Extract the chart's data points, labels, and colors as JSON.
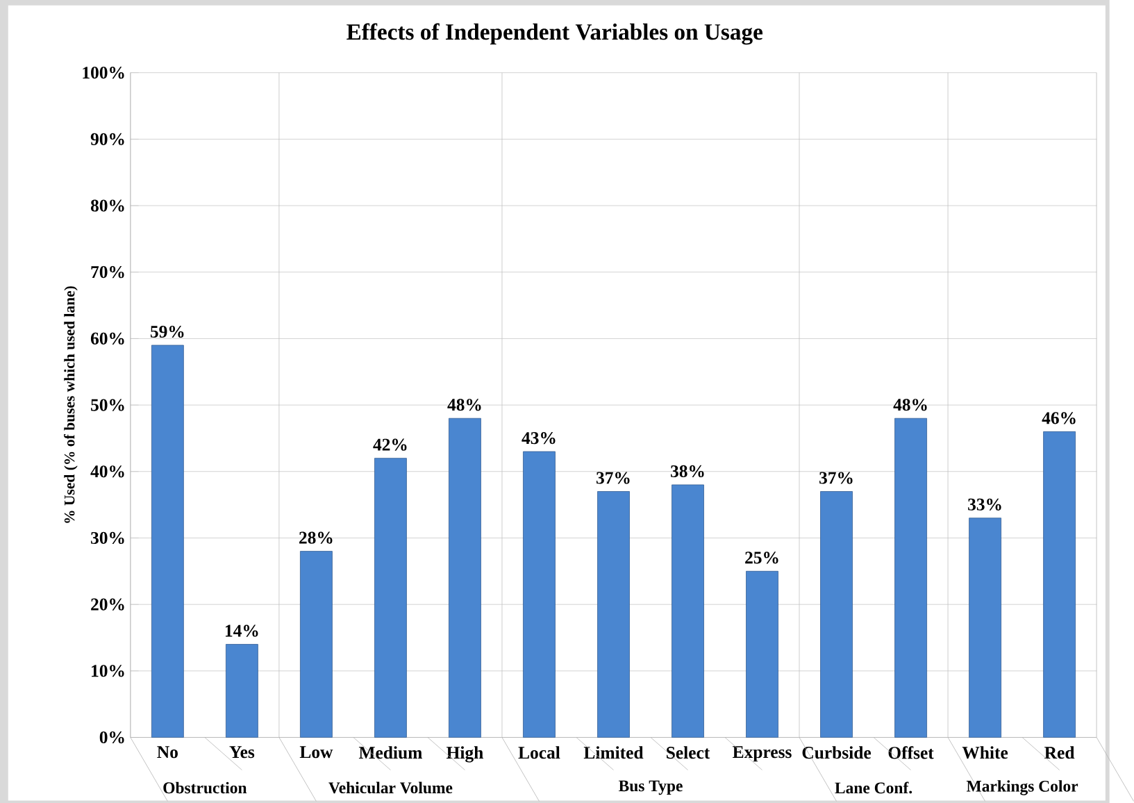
{
  "chart_data": {
    "type": "bar",
    "title": "Effects of Independent Variables on Usage",
    "ylabel": "% Used (% of buses which used lane)",
    "categories": [
      "No",
      "Yes",
      "Low",
      "Medium",
      "High",
      "Local",
      "Limited",
      "Select",
      "Express",
      "Curbside",
      "Offset",
      "White",
      "Red"
    ],
    "values": [
      59,
      14,
      28,
      42,
      48,
      43,
      37,
      38,
      25,
      37,
      48,
      33,
      46
    ],
    "value_labels": [
      "59%",
      "14%",
      "28%",
      "42%",
      "48%",
      "43%",
      "37%",
      "38%",
      "25%",
      "37%",
      "48%",
      "33%",
      "46%"
    ],
    "color": "#4a86d0",
    "ylim": [
      0,
      100
    ],
    "yticks": [
      {
        "value": 0,
        "label": "0%"
      },
      {
        "value": 10,
        "label": "10%"
      },
      {
        "value": 20,
        "label": "20%"
      },
      {
        "value": 30,
        "label": "30%"
      },
      {
        "value": 40,
        "label": "40%"
      },
      {
        "value": 50,
        "label": "50%"
      },
      {
        "value": 60,
        "label": "60%"
      },
      {
        "value": 70,
        "label": "70%"
      },
      {
        "value": 80,
        "label": "80%"
      },
      {
        "value": 90,
        "label": "90%"
      },
      {
        "value": 100,
        "label": "100%"
      }
    ],
    "grid": "y",
    "annotations": [
      "Obstruction",
      "Vehicular Volume",
      "Bus Type",
      "Lane Conf.",
      "Markings Color"
    ]
  }
}
